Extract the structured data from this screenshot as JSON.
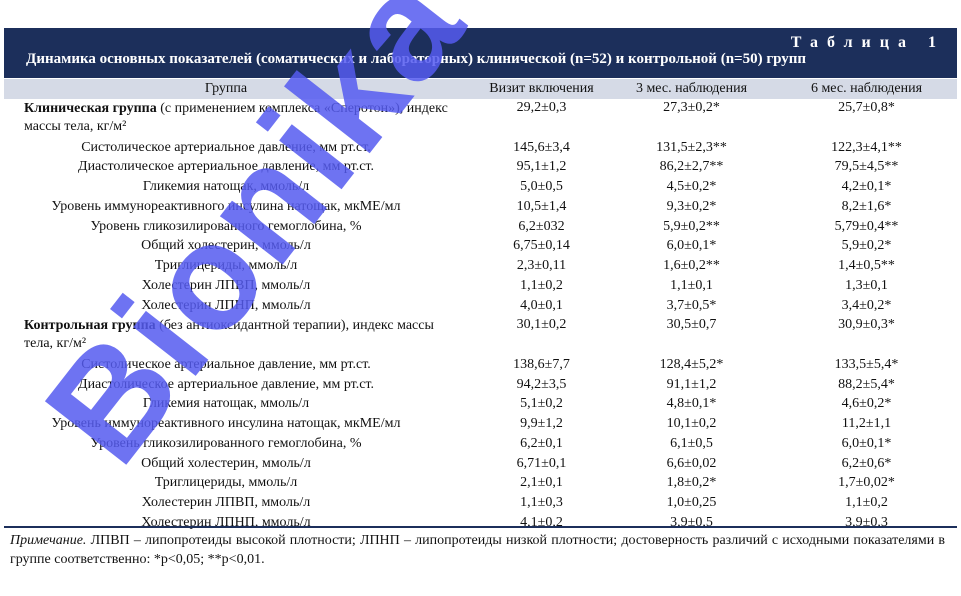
{
  "table": {
    "label": "Таблица 1",
    "title": "Динамика основных показателей (соматических и лабораторных) клинической (n=52) и контрольной (n=50) групп",
    "columns": [
      "Группа",
      "Визит включения",
      "3 мес. наблюдения",
      "6 мес. наблюдения"
    ],
    "clinical_group": {
      "title_bold": "Клиническая группа",
      "title_rest": " (с применением комплекса «Сперотон»), индекс массы тела, кг/м²",
      "bmi": [
        "29,2±0,3",
        "27,3±0,2*",
        "25,7±0,8*"
      ],
      "rows": [
        {
          "label": "Систолическое артериальное давление, мм рт.ст.",
          "v": [
            "145,6±3,4",
            "131,5±2,3**",
            "122,3±4,1**"
          ]
        },
        {
          "label": "Диастолическое артериальное давление, мм рт.ст.",
          "v": [
            "95,1±1,2",
            "86,2±2,7**",
            "79,5±4,5**"
          ]
        },
        {
          "label": "Гликемия натощак, ммоль/л",
          "v": [
            "5,0±0,5",
            "4,5±0,2*",
            "4,2±0,1*"
          ]
        },
        {
          "label": "Уровень иммунореактивного инсулина натощак, мкМЕ/мл",
          "v": [
            "10,5±1,4",
            "9,3±0,2*",
            "8,2±1,6*"
          ]
        },
        {
          "label": "Уровень гликозилированного гемоглобина, %",
          "v": [
            "6,2±032",
            "5,9±0,2**",
            "5,79±0,4**"
          ]
        },
        {
          "label": "Общий холестерин, ммоль/л",
          "v": [
            "6,75±0,14",
            "6,0±0,1*",
            "5,9±0,2*"
          ]
        },
        {
          "label": "Триглицериды, ммоль/л",
          "v": [
            "2,3±0,11",
            "1,6±0,2**",
            "1,4±0,5**"
          ]
        },
        {
          "label": "Холестерин ЛПВП, ммоль/л",
          "v": [
            "1,1±0,2",
            "1,1±0,1",
            "1,3±0,1"
          ]
        },
        {
          "label": "Холестерин ЛПНП, ммоль/л",
          "v": [
            "4,0±0,1",
            "3,7±0,5*",
            "3,4±0,2*"
          ]
        }
      ]
    },
    "control_group": {
      "title_bold": "Контрольная группа",
      "title_rest": " (без антиоксидантной терапии), индекс массы тела, кг/м²",
      "bmi": [
        "30,1±0,2",
        "30,5±0,7",
        "30,9±0,3*"
      ],
      "rows": [
        {
          "label": "Систолическое артериальное давление, мм рт.ст.",
          "v": [
            "138,6±7,7",
            "128,4±5,2*",
            "133,5±5,4*"
          ]
        },
        {
          "label": "Диастолическое артериальное давление, мм рт.ст.",
          "v": [
            "94,2±3,5",
            "91,1±1,2",
            "88,2±5,4*"
          ]
        },
        {
          "label": "Гликемия натощак, ммоль/л",
          "v": [
            "5,1±0,2",
            "4,8±0,1*",
            "4,6±0,2*"
          ]
        },
        {
          "label": "Уровень иммунореактивного инсулина натощак, мкМЕ/мл",
          "v": [
            "9,9±1,2",
            "10,1±0,2",
            "11,2±1,1"
          ]
        },
        {
          "label": "Уровень гликозилированного гемоглобина, %",
          "v": [
            "6,2±0,1",
            "6,1±0,5",
            "6,0±0,1*"
          ]
        },
        {
          "label": "Общий холестерин, ммоль/л",
          "v": [
            "6,71±0,1",
            "6,6±0,02",
            "6,2±0,6*"
          ]
        },
        {
          "label": "Триглицериды, ммоль/л",
          "v": [
            "2,1±0,1",
            "1,8±0,2*",
            "1,7±0,02*"
          ]
        },
        {
          "label": "Холестерин ЛПВП, ммоль/л",
          "v": [
            "1,1±0,3",
            "1,0±0,25",
            "1,1±0,2"
          ]
        },
        {
          "label": "Холестерин ЛПНП, ммоль/л",
          "v": [
            "4,1±0,2",
            "3,9±0,5",
            "3,9±0,3"
          ]
        }
      ]
    },
    "note_label": "Примечание.",
    "note_text": " ЛПВП – липопротеиды высокой плотности; ЛПНП – липопротеиды низкой плотности; достоверность различий с исходными показателями в группе соответственно: *p<0,05; **p<0,01."
  },
  "watermark": "Bionika",
  "colors": {
    "header_bg": "#1c2f5b",
    "subheader_bg": "#d5dae6",
    "watermark": "#555af0"
  }
}
